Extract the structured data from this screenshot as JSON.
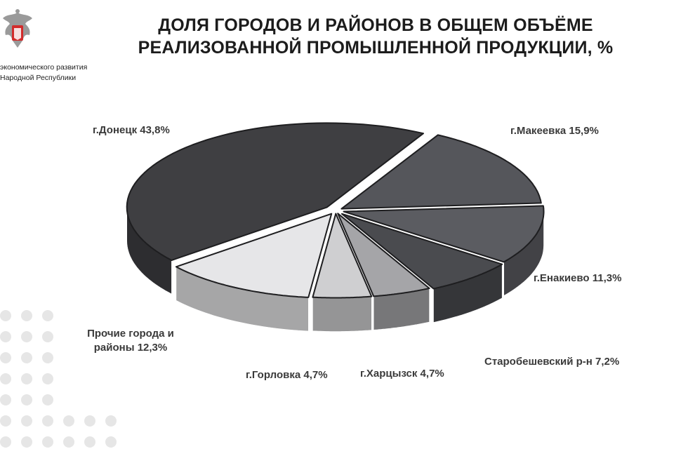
{
  "header": {
    "org_line1": "экономического развития",
    "org_line2": "Народной Республики",
    "title_line1": "ДОЛЯ ГОРОДОВ И РАЙОНОВ В ОБЩЕМ ОБЪЁМЕ",
    "title_line2": "РЕАЛИЗОВАННОЙ ПРОМЫШЛЕННОЙ ПРОДУКЦИИ, %"
  },
  "chart_data": {
    "type": "pie",
    "title": "ДОЛЯ ГОРОДОВ И РАЙОНОВ В ОБЩЕМ ОБЪЁМЕ РЕАЛИЗОВАННОЙ ПРОМЫШЛЕННОЙ ПРОДУКЦИИ, %",
    "unit": "%",
    "slices": [
      {
        "label": "г.Донецк",
        "value": 43.8,
        "display": "г.Донецк 43,8%",
        "color": "#3f3f42"
      },
      {
        "label": "г.Макеевка",
        "value": 15.9,
        "display": "г.Макеевка 15,9%",
        "color": "#55565b"
      },
      {
        "label": "г.Енакиево",
        "value": 11.3,
        "display": "г.Енакиево 11,3%",
        "color": "#5b5c61"
      },
      {
        "label": "Старобешевский р-н",
        "value": 7.2,
        "display": "Старобешевский р-н 7,2%",
        "color": "#4a4b4f"
      },
      {
        "label": "г.Харцызск",
        "value": 4.7,
        "display": "г.Харцызск 4,7%",
        "color": "#a5a5a8"
      },
      {
        "label": "г.Горловка",
        "value": 4.7,
        "display": "г.Горловка 4,7%",
        "color": "#cfcfd1"
      },
      {
        "label": "Прочие города и районы",
        "value": 12.3,
        "display_line1": "Прочие города и",
        "display_line2": "районы 12,3%",
        "color": "#e6e6e8"
      }
    ]
  }
}
